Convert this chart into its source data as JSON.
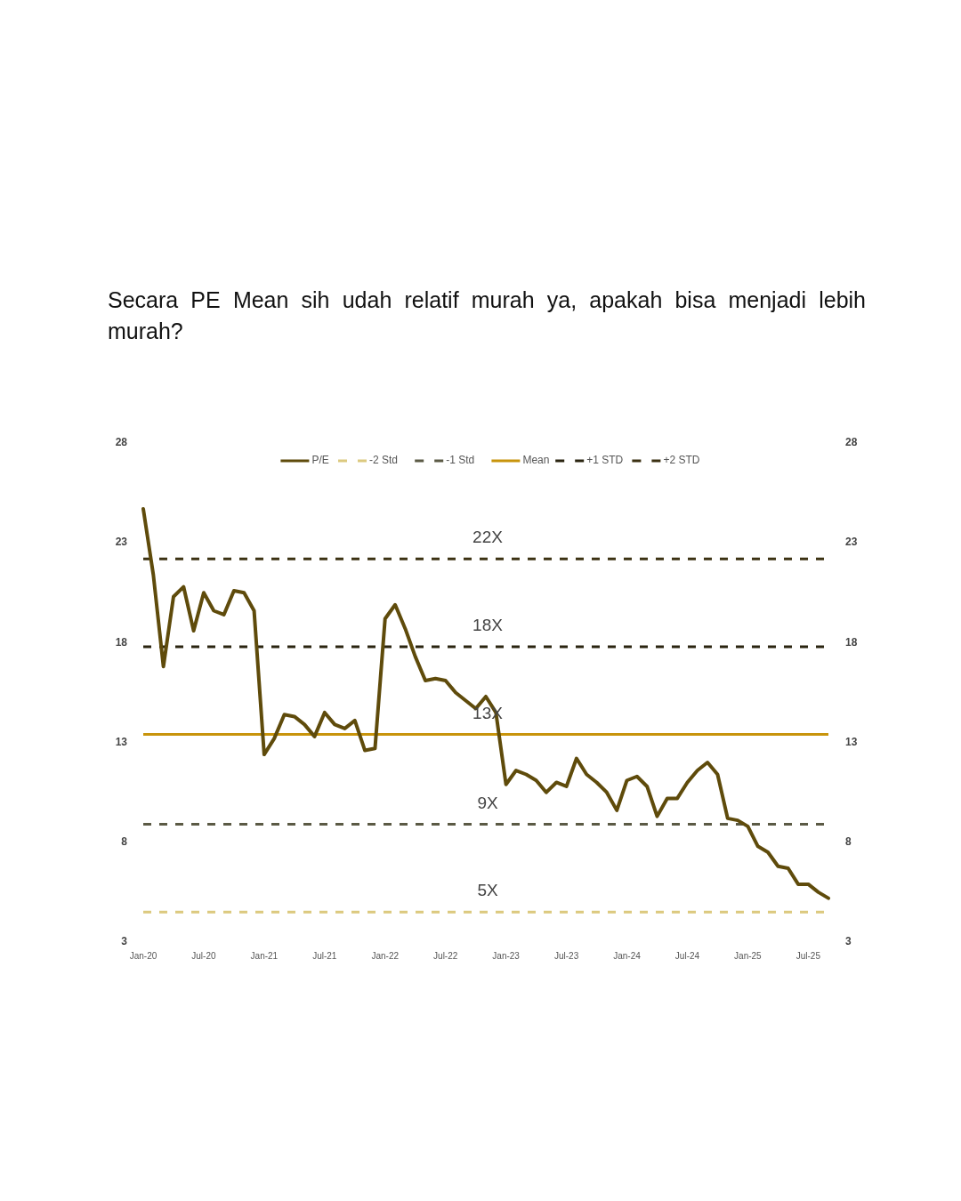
{
  "chart_data": {
    "type": "line",
    "title": "Secara PE Mean sih udah relatif murah ya, apakah bisa menjadi lebih murah?",
    "categories": [
      "Jan-20",
      null,
      null,
      null,
      null,
      null,
      "Jul-20",
      null,
      null,
      null,
      null,
      null,
      "Jan-21",
      null,
      null,
      null,
      null,
      null,
      "Jul-21",
      null,
      null,
      null,
      null,
      null,
      "Jan-22",
      null,
      null,
      null,
      null,
      null,
      "Jul-22",
      null,
      null,
      null,
      null,
      null,
      "Jan-23",
      null,
      null,
      null,
      null,
      null,
      "Jul-23",
      null,
      null,
      null,
      null,
      null,
      "Jan-24",
      null,
      null,
      null,
      null,
      null,
      "Jul-24",
      null,
      null,
      null,
      null,
      null,
      "Jan-25",
      null,
      null,
      null,
      null,
      null,
      "Jul-25",
      null,
      null
    ],
    "series": [
      {
        "name": "P/E",
        "color": "#5f4b0b",
        "line_style": "solid",
        "values": [
          24.7,
          21.4,
          16.8,
          20.3,
          20.8,
          18.6,
          20.5,
          19.6,
          19.4,
          20.6,
          20.5,
          19.6,
          12.4,
          13.2,
          14.4,
          14.3,
          13.9,
          13.3,
          14.5,
          13.9,
          13.7,
          14.1,
          12.6,
          12.7,
          19.2,
          19.9,
          18.7,
          17.3,
          16.1,
          16.2,
          16.1,
          15.5,
          15.1,
          14.7,
          15.3,
          14.5,
          10.9,
          11.6,
          11.4,
          11.1,
          10.5,
          11.0,
          10.8,
          12.2,
          11.4,
          11.0,
          10.5,
          9.6,
          11.1,
          11.3,
          10.8,
          9.3,
          10.2,
          10.2,
          11.0,
          11.6,
          12.0,
          11.4,
          9.2,
          9.1,
          8.8,
          7.8,
          7.5,
          6.8,
          6.7,
          5.9,
          5.9,
          5.5,
          5.2
        ]
      },
      {
        "name": "-2 Std",
        "color": "#dcc97f",
        "line_style": "dashed",
        "values": [
          4.5,
          4.5,
          4.5,
          4.5,
          4.5,
          4.5,
          4.5,
          4.5,
          4.5,
          4.5,
          4.5,
          4.5,
          4.5,
          4.5,
          4.5,
          4.5,
          4.5,
          4.5,
          4.5,
          4.5,
          4.5,
          4.5,
          4.5,
          4.5,
          4.5,
          4.5,
          4.5,
          4.5,
          4.5,
          4.5,
          4.5,
          4.5,
          4.5,
          4.5,
          4.5,
          4.5,
          4.5,
          4.5,
          4.5,
          4.5,
          4.5,
          4.5,
          4.5,
          4.5,
          4.5,
          4.5,
          4.5,
          4.5,
          4.5,
          4.5,
          4.5,
          4.5,
          4.5,
          4.5,
          4.5,
          4.5,
          4.5,
          4.5,
          4.5,
          4.5,
          4.5,
          4.5,
          4.5,
          4.5,
          4.5,
          4.5,
          4.5,
          4.5,
          4.5
        ]
      },
      {
        "name": "-1 Std",
        "color": "#5b5a45",
        "line_style": "dashed",
        "values": [
          8.9,
          8.9,
          8.9,
          8.9,
          8.9,
          8.9,
          8.9,
          8.9,
          8.9,
          8.9,
          8.9,
          8.9,
          8.9,
          8.9,
          8.9,
          8.9,
          8.9,
          8.9,
          8.9,
          8.9,
          8.9,
          8.9,
          8.9,
          8.9,
          8.9,
          8.9,
          8.9,
          8.9,
          8.9,
          8.9,
          8.9,
          8.9,
          8.9,
          8.9,
          8.9,
          8.9,
          8.9,
          8.9,
          8.9,
          8.9,
          8.9,
          8.9,
          8.9,
          8.9,
          8.9,
          8.9,
          8.9,
          8.9,
          8.9,
          8.9,
          8.9,
          8.9,
          8.9,
          8.9,
          8.9,
          8.9,
          8.9,
          8.9,
          8.9,
          8.9,
          8.9,
          8.9,
          8.9,
          8.9,
          8.9,
          8.9,
          8.9,
          8.9,
          8.9
        ]
      },
      {
        "name": "Mean",
        "color": "#c8940c",
        "line_style": "solid",
        "values": [
          13.4,
          13.4,
          13.4,
          13.4,
          13.4,
          13.4,
          13.4,
          13.4,
          13.4,
          13.4,
          13.4,
          13.4,
          13.4,
          13.4,
          13.4,
          13.4,
          13.4,
          13.4,
          13.4,
          13.4,
          13.4,
          13.4,
          13.4,
          13.4,
          13.4,
          13.4,
          13.4,
          13.4,
          13.4,
          13.4,
          13.4,
          13.4,
          13.4,
          13.4,
          13.4,
          13.4,
          13.4,
          13.4,
          13.4,
          13.4,
          13.4,
          13.4,
          13.4,
          13.4,
          13.4,
          13.4,
          13.4,
          13.4,
          13.4,
          13.4,
          13.4,
          13.4,
          13.4,
          13.4,
          13.4,
          13.4,
          13.4,
          13.4,
          13.4,
          13.4,
          13.4,
          13.4,
          13.4,
          13.4,
          13.4,
          13.4,
          13.4,
          13.4,
          13.4
        ]
      },
      {
        "name": "+1 STD",
        "color": "#2a2410",
        "line_style": "dashed",
        "values": [
          17.8,
          17.8,
          17.8,
          17.8,
          17.8,
          17.8,
          17.8,
          17.8,
          17.8,
          17.8,
          17.8,
          17.8,
          17.8,
          17.8,
          17.8,
          17.8,
          17.8,
          17.8,
          17.8,
          17.8,
          17.8,
          17.8,
          17.8,
          17.8,
          17.8,
          17.8,
          17.8,
          17.8,
          17.8,
          17.8,
          17.8,
          17.8,
          17.8,
          17.8,
          17.8,
          17.8,
          17.8,
          17.8,
          17.8,
          17.8,
          17.8,
          17.8,
          17.8,
          17.8,
          17.8,
          17.8,
          17.8,
          17.8,
          17.8,
          17.8,
          17.8,
          17.8,
          17.8,
          17.8,
          17.8,
          17.8,
          17.8,
          17.8,
          17.8,
          17.8,
          17.8,
          17.8,
          17.8,
          17.8,
          17.8,
          17.8,
          17.8,
          17.8,
          17.8
        ]
      },
      {
        "name": "+2 STD",
        "color": "#3b3112",
        "line_style": "dashed",
        "values": [
          22.2,
          22.2,
          22.2,
          22.2,
          22.2,
          22.2,
          22.2,
          22.2,
          22.2,
          22.2,
          22.2,
          22.2,
          22.2,
          22.2,
          22.2,
          22.2,
          22.2,
          22.2,
          22.2,
          22.2,
          22.2,
          22.2,
          22.2,
          22.2,
          22.2,
          22.2,
          22.2,
          22.2,
          22.2,
          22.2,
          22.2,
          22.2,
          22.2,
          22.2,
          22.2,
          22.2,
          22.2,
          22.2,
          22.2,
          22.2,
          22.2,
          22.2,
          22.2,
          22.2,
          22.2,
          22.2,
          22.2,
          22.2,
          22.2,
          22.2,
          22.2,
          22.2,
          22.2,
          22.2,
          22.2,
          22.2,
          22.2,
          22.2,
          22.2,
          22.2,
          22.2,
          22.2,
          22.2,
          22.2,
          22.2,
          22.2,
          22.2,
          22.2,
          22.2
        ]
      }
    ],
    "ylim": [
      3,
      28
    ],
    "yticks": [
      3,
      8,
      13,
      18,
      23,
      28
    ],
    "y2lim": [
      3,
      28
    ],
    "y2ticks": [
      3,
      8,
      13,
      18,
      23,
      28
    ],
    "annotations": [
      {
        "text": "22X",
        "y": 22.2
      },
      {
        "text": "18X",
        "y": 17.8
      },
      {
        "text": "13X",
        "y": 13.4
      },
      {
        "text": "9X",
        "y": 8.9
      },
      {
        "text": "5X",
        "y": 4.5
      }
    ],
    "legend": "top",
    "grid": false
  }
}
